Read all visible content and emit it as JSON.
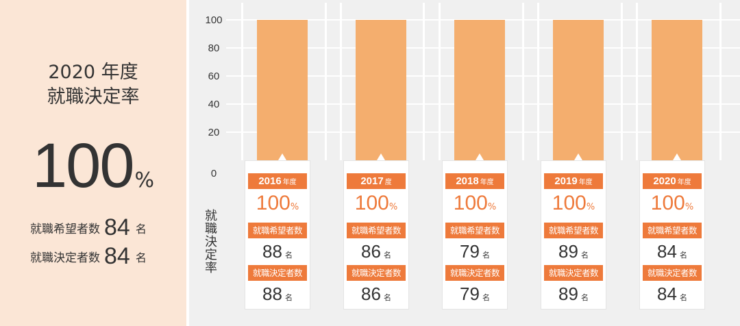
{
  "summary": {
    "title_line1": "2020 年度",
    "title_line2": "就職決定率",
    "rate": "100",
    "rate_unit": "%",
    "applicants_label": "就職希望者数",
    "applicants_count": "84",
    "decided_label": "就職決定者数",
    "decided_count": "84",
    "count_unit": "名"
  },
  "colors": {
    "bar": "#f4ae6e",
    "accent": "#ee7a3b",
    "summary_bg": "#fbe6d6",
    "chart_bg": "#f0f0f0"
  },
  "chart_data": {
    "type": "bar",
    "categories": [
      "2016",
      "2017",
      "2018",
      "2019",
      "2020"
    ],
    "values": [
      100,
      100,
      100,
      100,
      100
    ],
    "ylabel": "就職決定率",
    "ylim": [
      0,
      100
    ],
    "yticks": [
      "0",
      "20",
      "40",
      "60",
      "80",
      "100"
    ],
    "grid": true
  },
  "years": [
    {
      "year": "2016",
      "year_suffix": "年度",
      "rate": "100",
      "rate_unit": "%",
      "applicants_label": "就職希望者数",
      "applicants": "88",
      "decided_label": "就職決定者数",
      "decided": "88",
      "unit": "名"
    },
    {
      "year": "2017",
      "year_suffix": "度",
      "rate": "100",
      "rate_unit": "%",
      "applicants_label": "就職希望者数",
      "applicants": "86",
      "decided_label": "就職決定者数",
      "decided": "86",
      "unit": "名"
    },
    {
      "year": "2018",
      "year_suffix": "年度",
      "rate": "100",
      "rate_unit": "%",
      "applicants_label": "就職希望者数",
      "applicants": "79",
      "decided_label": "就職決定者数",
      "decided": "79",
      "unit": "名"
    },
    {
      "year": "2019",
      "year_suffix": "年度",
      "rate": "100",
      "rate_unit": "%",
      "applicants_label": "就職希望者数",
      "applicants": "89",
      "decided_label": "就職決定者数",
      "decided": "89",
      "unit": "名"
    },
    {
      "year": "2020",
      "year_suffix": "年度",
      "rate": "100",
      "rate_unit": "%",
      "applicants_label": "就職希望者数",
      "applicants": "84",
      "decided_label": "就職決定者数",
      "decided": "84",
      "unit": "名"
    }
  ]
}
